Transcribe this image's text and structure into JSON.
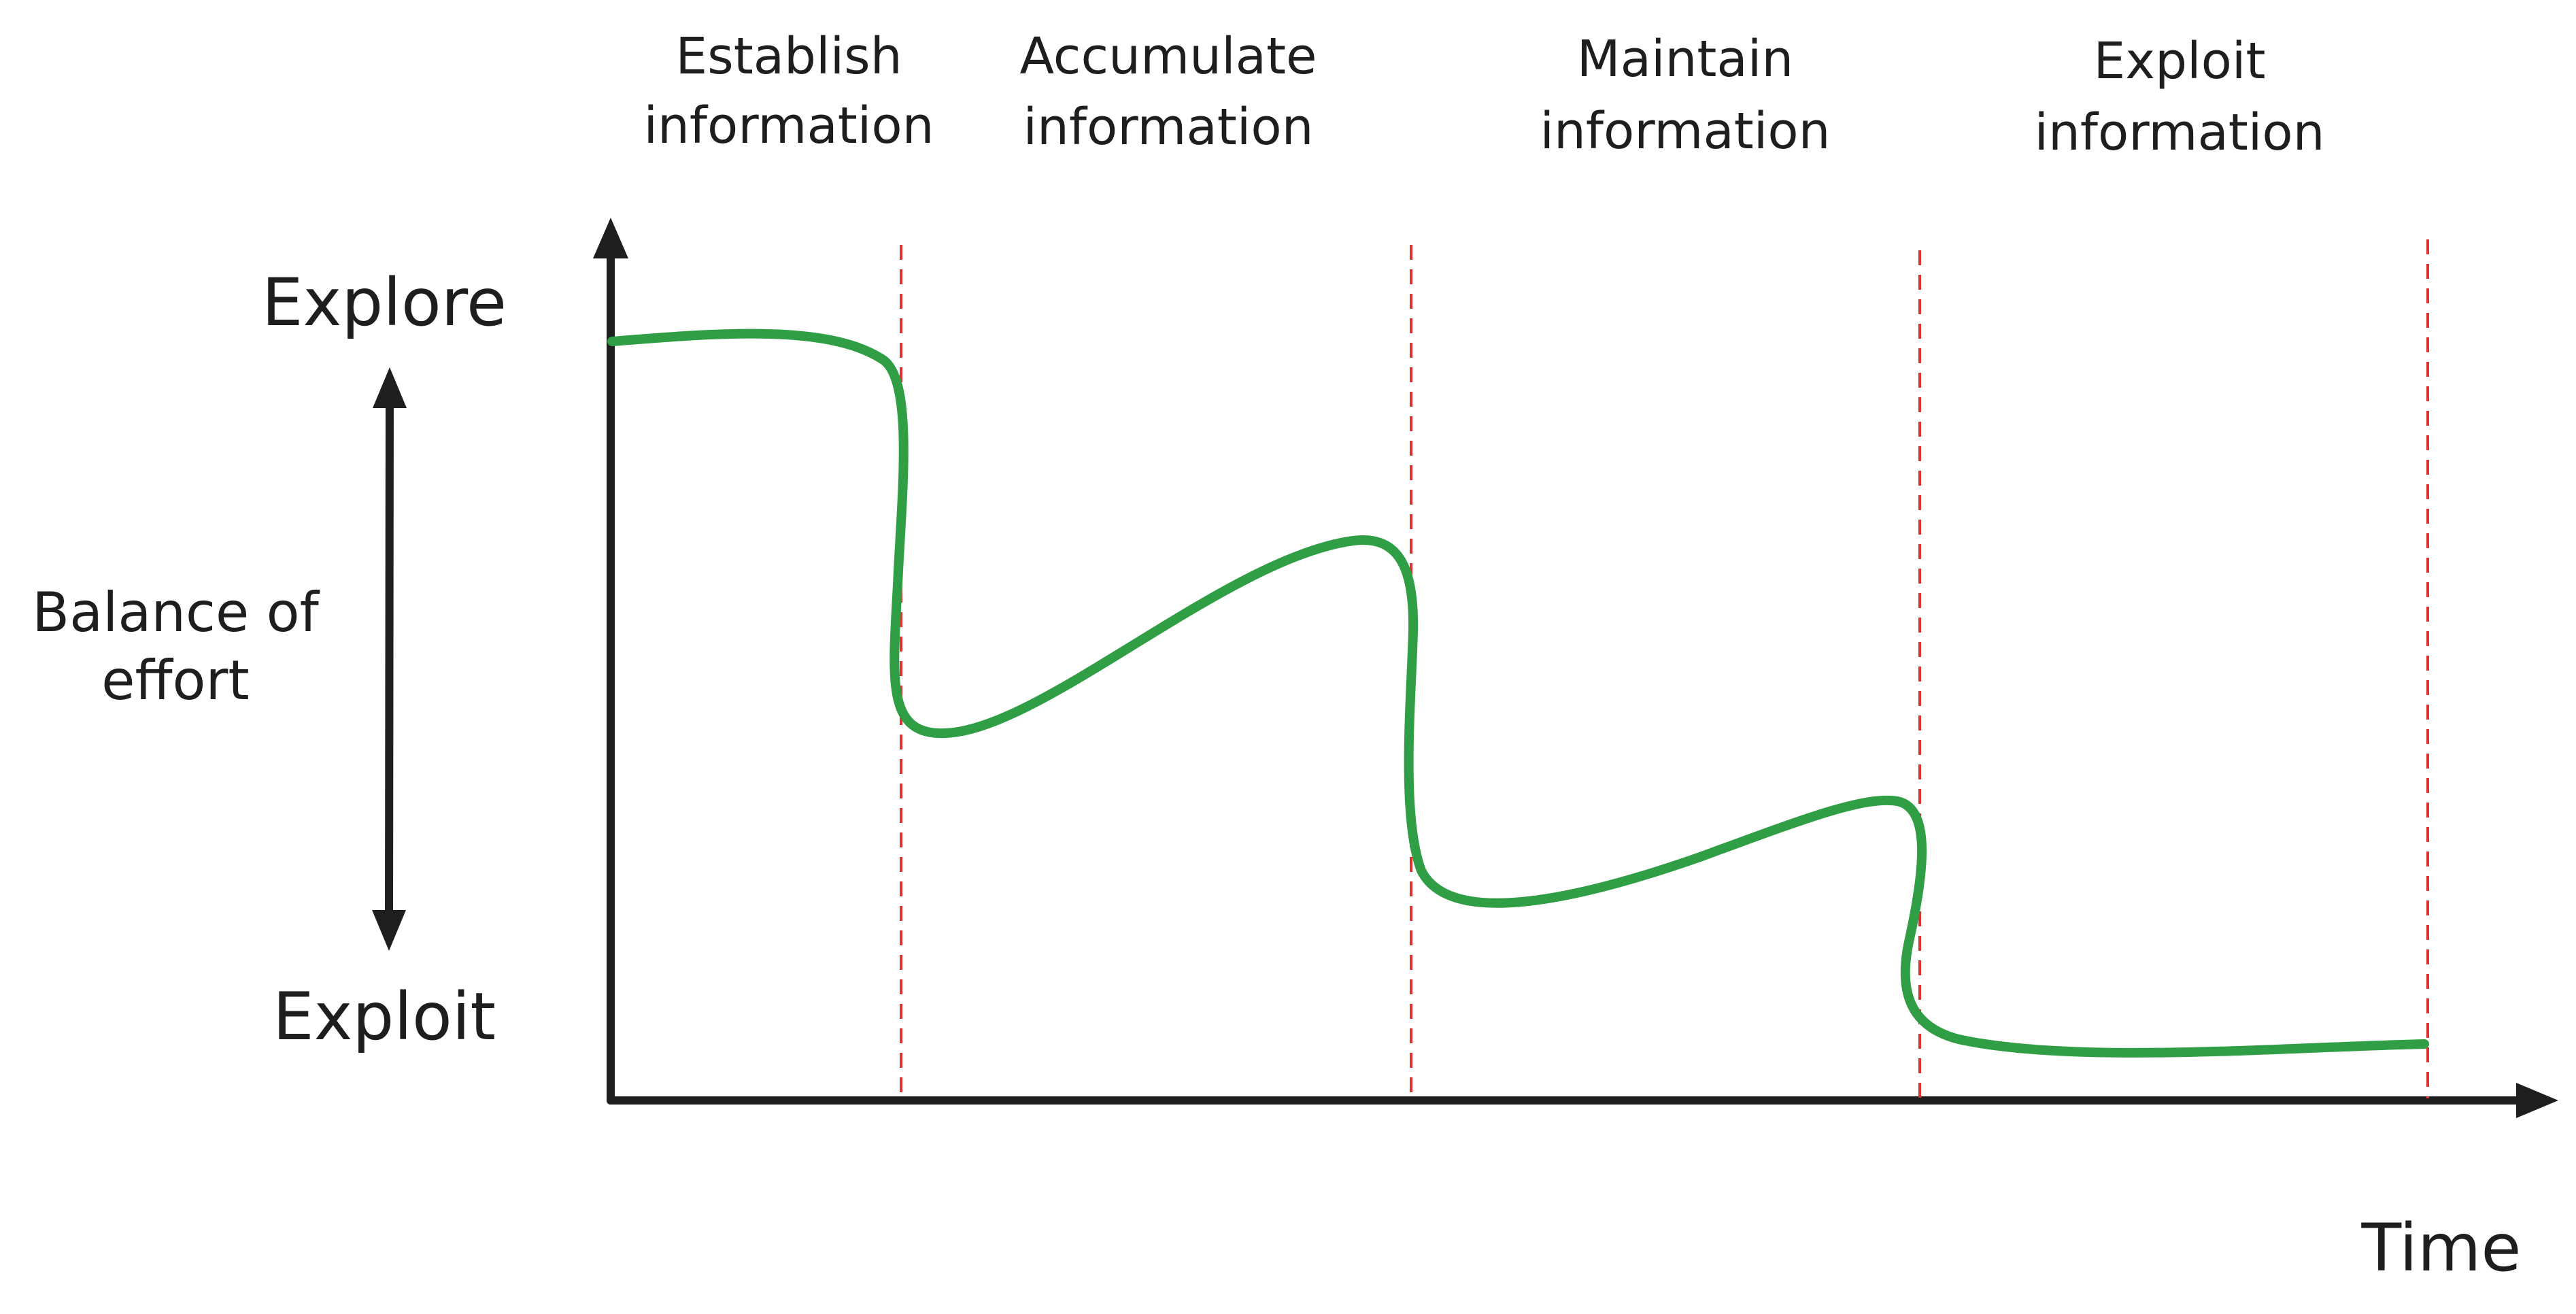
{
  "phases": [
    {
      "line1": "Establish",
      "line2": "information"
    },
    {
      "line1": "Accumulate",
      "line2": "information"
    },
    {
      "line1": "Maintain",
      "line2": "information"
    },
    {
      "line1": "Exploit",
      "line2": "information"
    }
  ],
  "y_axis": {
    "top_label": "Explore",
    "bottom_label": "Exploit",
    "side_label_line1": "Balance of",
    "side_label_line2": "effort"
  },
  "x_axis": {
    "label": "Time"
  },
  "colors": {
    "curve": "#2f9e44",
    "divider": "#e03131",
    "ink": "#1e1e1e"
  }
}
